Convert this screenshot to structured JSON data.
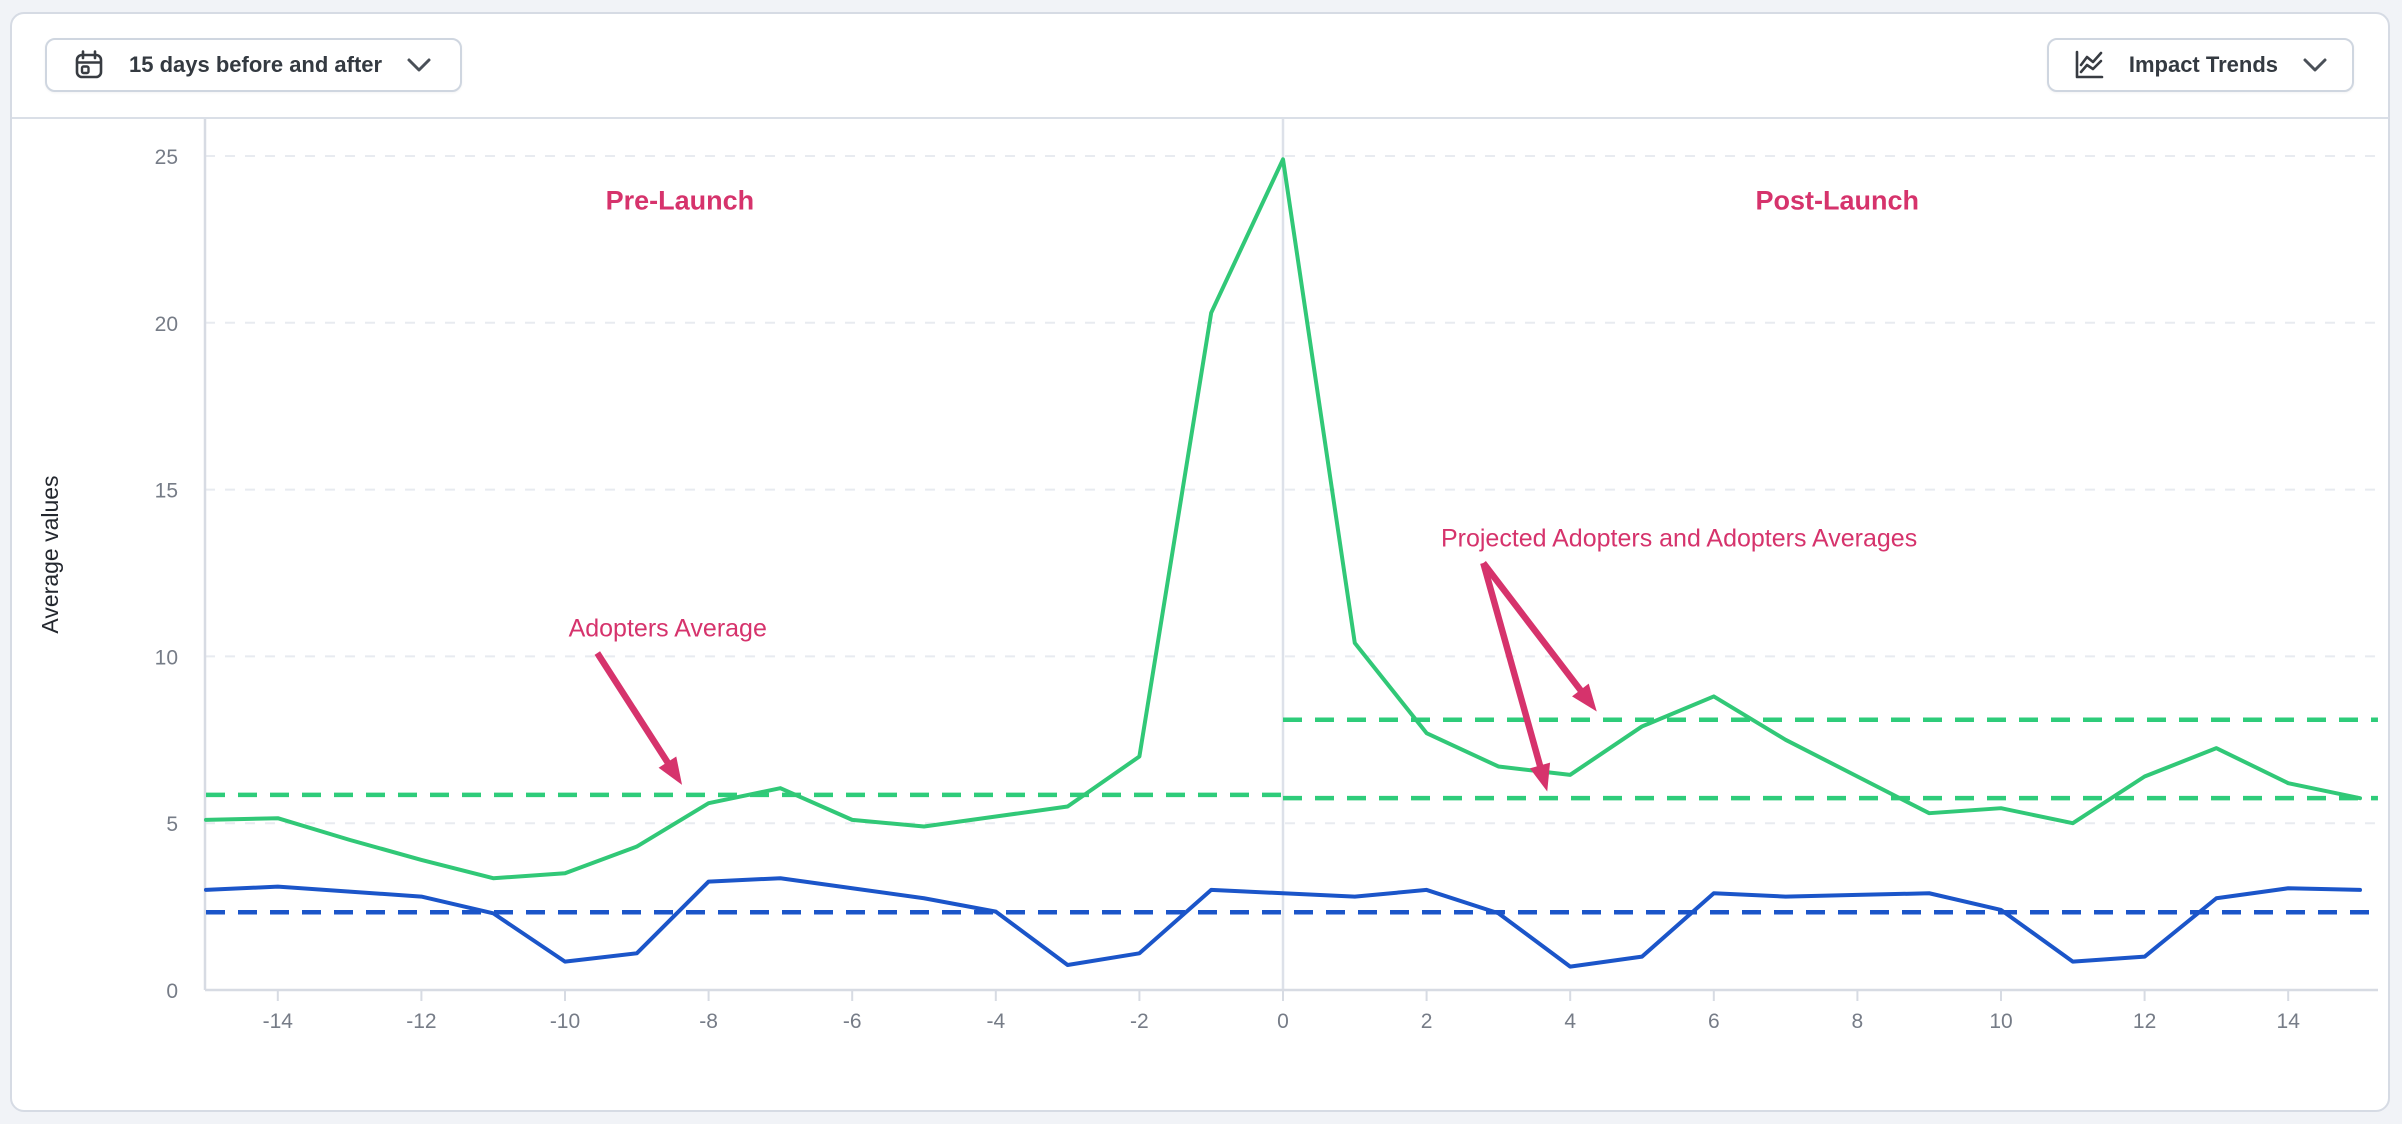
{
  "toolbar": {
    "date_range_button": {
      "label": "15 days before and after",
      "icon": "calendar-icon"
    },
    "view_button": {
      "label": "Impact Trends",
      "icon": "line-chart-icon"
    }
  },
  "chart_data": {
    "type": "line",
    "title": "",
    "xlabel": "",
    "ylabel": "Average values",
    "xlim": [
      -15.1,
      15.25
    ],
    "ylim": [
      0,
      26.1
    ],
    "yticks": [
      0,
      5,
      10,
      15,
      20,
      25
    ],
    "xticks": [
      -14,
      -12,
      -10,
      -8,
      -6,
      -4,
      -2,
      0,
      2,
      4,
      6,
      8,
      10,
      12,
      14
    ],
    "grid": "horizontal-dashed",
    "legend": "none",
    "x": [
      -15,
      -14,
      -13,
      -12,
      -11,
      -10,
      -9,
      -8,
      -7,
      -6,
      -5,
      -4,
      -3,
      -2,
      -1,
      0,
      1,
      2,
      3,
      4,
      5,
      6,
      7,
      8,
      9,
      10,
      11,
      12,
      13,
      14,
      15
    ],
    "series": [
      {
        "name": "adopters-green-line",
        "color": "#31c877",
        "values": [
          5.1,
          5.15,
          4.5,
          3.9,
          3.35,
          3.5,
          4.3,
          5.6,
          6.05,
          5.1,
          4.9,
          5.2,
          5.5,
          7.0,
          20.3,
          24.9,
          10.4,
          7.7,
          6.7,
          6.45,
          7.9,
          8.8,
          7.5,
          6.4,
          5.3,
          5.45,
          5.0,
          6.4,
          7.25,
          6.2,
          5.75
        ]
      },
      {
        "name": "projected-adopters-blue-line",
        "color": "#1b55c9",
        "values": [
          3.0,
          3.1,
          2.95,
          2.8,
          2.3,
          0.85,
          1.1,
          3.25,
          3.35,
          3.05,
          2.75,
          2.35,
          0.75,
          1.1,
          3.0,
          2.9,
          2.8,
          3.0,
          2.3,
          0.7,
          1.0,
          2.9,
          2.8,
          2.85,
          2.9,
          2.4,
          0.85,
          1.0,
          2.75,
          3.05,
          3.0
        ]
      }
    ],
    "reference_lines": [
      {
        "name": "green-average-pre-launch",
        "value": 5.85,
        "x_range": [
          -15,
          0
        ],
        "color": "#2ecc7a",
        "style": "dashed"
      },
      {
        "name": "green-average-post-launch-lower",
        "value": 5.75,
        "x_range": [
          0,
          15.25
        ],
        "color": "#2ecc7a",
        "style": "dashed"
      },
      {
        "name": "green-average-post-launch-upper",
        "value": 8.1,
        "x_range": [
          0,
          15.25
        ],
        "color": "#2ecc7a",
        "style": "dashed"
      },
      {
        "name": "blue-average",
        "value": 2.33,
        "x_range": [
          -15,
          15.25
        ],
        "color": "#1b55c9",
        "style": "dashed"
      }
    ],
    "annotations": [
      {
        "name": "pre-launch-label",
        "text": "Pre-Launch",
        "bold": true,
        "anchor": "middle",
        "x": -8.4,
        "y": 23.4,
        "arrows": []
      },
      {
        "name": "post-launch-label",
        "text": "Post-Launch",
        "bold": true,
        "anchor": "middle",
        "x": 7.72,
        "y": 23.4,
        "arrows": []
      },
      {
        "name": "adopters-average-label",
        "text": "Adopters Average",
        "bold": false,
        "anchor": "start",
        "x": -9.95,
        "y": 10.6,
        "arrows": [
          {
            "from": [
              -9.55,
              10.1
            ],
            "to": [
              -8.37,
              6.15
            ]
          }
        ]
      },
      {
        "name": "projected-and-adopters-averages-label",
        "text": "Projected Adopters and Adopters Averages",
        "bold": false,
        "anchor": "start",
        "x": 2.2,
        "y": 13.3,
        "arrows": [
          {
            "from": [
              2.79,
              12.8
            ],
            "to": [
              4.37,
              8.35
            ]
          },
          {
            "from": [
              2.79,
              12.8
            ],
            "to": [
              3.68,
              5.95
            ]
          }
        ]
      }
    ],
    "colors": {
      "annotation_pink": "#d6336c",
      "grid": "#e8ebf0",
      "axis": "#d7dbe3",
      "zero_line": "#dde1e9",
      "tick_text": "#767c87",
      "axis_title_text": "#23272e"
    }
  }
}
